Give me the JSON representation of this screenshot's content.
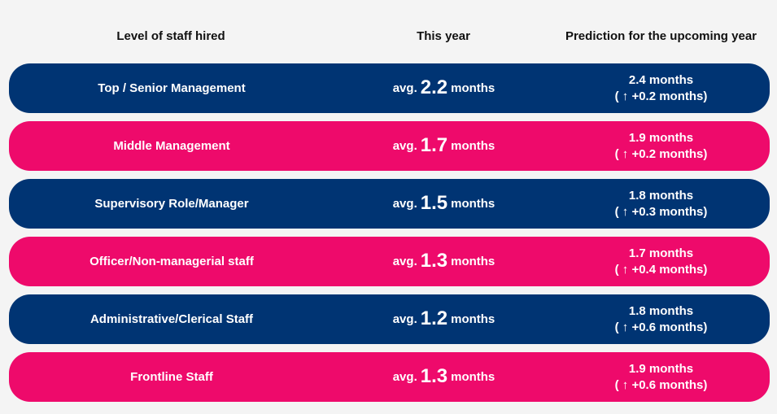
{
  "header": {
    "col1": "Level of staff hired",
    "col2": "This year",
    "col3": "Prediction for the upcoming year"
  },
  "rows": [
    {
      "level": "Top / Senior Management",
      "avg_prefix": "avg.",
      "avg_value": "2.2",
      "avg_unit": "months",
      "prediction": "2.4 months",
      "change": "( ↑ +0.2 months)",
      "color": "#003473"
    },
    {
      "level": "Middle Management",
      "avg_prefix": "avg.",
      "avg_value": "1.7",
      "avg_unit": "months",
      "prediction": "1.9 months",
      "change": "( ↑ +0.2 months)",
      "color": "#ee0a6b"
    },
    {
      "level": "Supervisory Role/Manager",
      "avg_prefix": "avg.",
      "avg_value": "1.5",
      "avg_unit": "months",
      "prediction": "1.8 months",
      "change": "( ↑ +0.3 months)",
      "color": "#003473"
    },
    {
      "level": "Officer/Non-managerial staff",
      "avg_prefix": "avg.",
      "avg_value": "1.3",
      "avg_unit": "months",
      "prediction": "1.7 months",
      "change": "( ↑ +0.4 months)",
      "color": "#ee0a6b"
    },
    {
      "level": "Administrative/Clerical Staff",
      "avg_prefix": "avg.",
      "avg_value": "1.2",
      "avg_unit": "months",
      "prediction": "1.8 months",
      "change": "( ↑ +0.6 months)",
      "color": "#003473"
    },
    {
      "level": "Frontline Staff",
      "avg_prefix": "avg.",
      "avg_value": "1.3",
      "avg_unit": "months",
      "prediction": "1.9 months",
      "change": "( ↑ +0.6 months)",
      "color": "#ee0a6b"
    }
  ]
}
